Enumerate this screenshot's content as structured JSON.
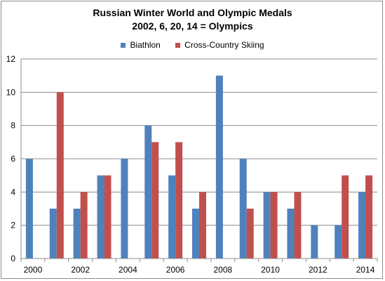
{
  "chart_data": {
    "type": "bar",
    "title": [
      "Russian Winter World and Olympic Medals",
      "2002, 6,  20, 14 = Olympics"
    ],
    "categories": [
      "2000",
      "2001",
      "2002",
      "2003",
      "2004",
      "2005",
      "2006",
      "2007",
      "2008",
      "2009",
      "2010",
      "2011",
      "2012",
      "2013",
      "2014"
    ],
    "x_tick_labels": [
      "2000",
      "",
      "2002",
      "",
      "2004",
      "",
      "2006",
      "",
      "2008",
      "",
      "2010",
      "",
      "2012",
      "",
      "2014"
    ],
    "series": [
      {
        "name": "Biathlon",
        "color": "#4f81bd",
        "values": [
          6,
          3,
          3,
          5,
          6,
          8,
          5,
          3,
          11,
          6,
          4,
          3,
          2,
          2,
          4
        ]
      },
      {
        "name": "Cross-Country Skiing",
        "color": "#c0504d",
        "values": [
          0,
          10,
          4,
          5,
          0,
          7,
          7,
          4,
          0,
          3,
          4,
          4,
          0,
          5,
          5
        ]
      }
    ],
    "ylim": [
      0,
      12
    ],
    "y_ticks": [
      0,
      2,
      4,
      6,
      8,
      10,
      12
    ],
    "grid": true,
    "legend_position": "top"
  }
}
